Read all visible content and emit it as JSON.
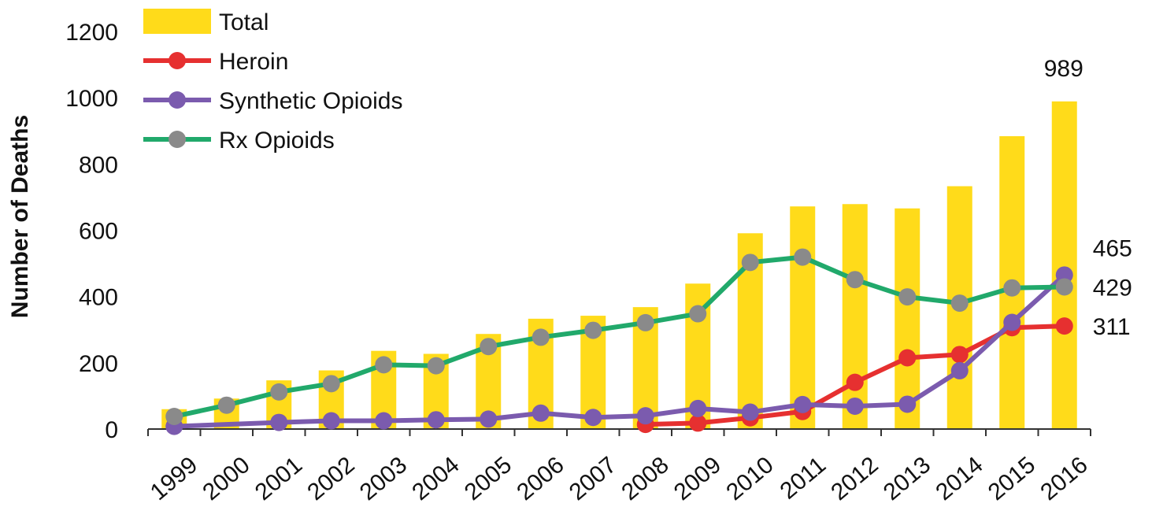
{
  "chart_data": {
    "type": "bar+line",
    "title": "",
    "xlabel": "",
    "ylabel": "Number of Deaths",
    "ylim": [
      0,
      1200
    ],
    "yticks": [
      0,
      200,
      400,
      600,
      800,
      1000,
      1200
    ],
    "grid": false,
    "legend_position": "top-left",
    "categories": [
      "1999",
      "2000",
      "2001",
      "2002",
      "2003",
      "2004",
      "2005",
      "2006",
      "2007",
      "2008",
      "2009",
      "2010",
      "2011",
      "2012",
      "2013",
      "2014",
      "2015",
      "2016"
    ],
    "bar_series": {
      "name": "Total",
      "color": "#FFDB1A",
      "values": [
        60,
        92,
        147,
        177,
        236,
        227,
        287,
        333,
        342,
        368,
        439,
        591,
        672,
        679,
        666,
        733,
        884,
        989
      ]
    },
    "series": [
      {
        "name": "Heroin",
        "color": "#E63030",
        "marker_color": "#E63030",
        "values": [
          null,
          null,
          null,
          null,
          null,
          null,
          null,
          null,
          null,
          14,
          18,
          34,
          53,
          141,
          215,
          225,
          306,
          311
        ]
      },
      {
        "name": "Synthetic Opioids",
        "color": "#7B5BAE",
        "marker_color": "#7B5BAE",
        "values": [
          8,
          null,
          20,
          25,
          25,
          28,
          30,
          48,
          35,
          40,
          62,
          51,
          74,
          69,
          75,
          176,
          322,
          465
        ]
      },
      {
        "name": "Rx Opioids",
        "color": "#21A96B",
        "marker_color": "#8A8A8A",
        "values": [
          38,
          72,
          112,
          137,
          194,
          191,
          249,
          277,
          298,
          321,
          348,
          503,
          519,
          451,
          399,
          380,
          426,
          429
        ]
      }
    ],
    "annotations": [
      {
        "text": "989",
        "category": "2016",
        "series": "Total"
      },
      {
        "text": "465",
        "category": "2016",
        "series": "Synthetic Opioids"
      },
      {
        "text": "429",
        "category": "2016",
        "series": "Rx Opioids"
      },
      {
        "text": "311",
        "category": "2016",
        "series": "Heroin"
      }
    ]
  }
}
